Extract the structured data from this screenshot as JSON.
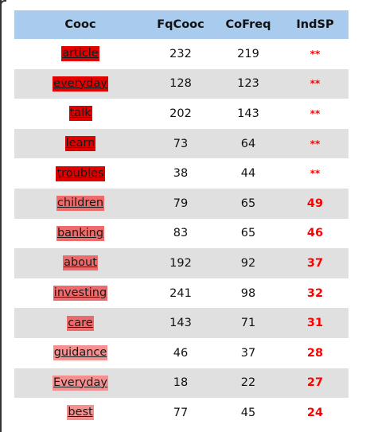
{
  "table": {
    "headers": [
      "Cooc",
      "FqCooc",
      "CoFreq",
      "IndSP"
    ],
    "rows": [
      {
        "word": "article",
        "fq": "232",
        "co": "219",
        "ind": "**",
        "level": "strong"
      },
      {
        "word": "everyday",
        "fq": "128",
        "co": "123",
        "ind": "**",
        "level": "strong"
      },
      {
        "word": "talk",
        "fq": "202",
        "co": "143",
        "ind": "**",
        "level": "strong"
      },
      {
        "word": "learn",
        "fq": "73",
        "co": "64",
        "ind": "**",
        "level": "strong"
      },
      {
        "word": "troubles",
        "fq": "38",
        "co": "44",
        "ind": "**",
        "level": "strong"
      },
      {
        "word": "children",
        "fq": "79",
        "co": "65",
        "ind": "49",
        "level": "medium"
      },
      {
        "word": "banking",
        "fq": "83",
        "co": "65",
        "ind": "46",
        "level": "medium"
      },
      {
        "word": "about",
        "fq": "192",
        "co": "92",
        "ind": "37",
        "level": "medium"
      },
      {
        "word": "investing",
        "fq": "241",
        "co": "98",
        "ind": "32",
        "level": "medium"
      },
      {
        "word": "care",
        "fq": "143",
        "co": "71",
        "ind": "31",
        "level": "medium"
      },
      {
        "word": "guidance",
        "fq": "46",
        "co": "37",
        "ind": "28",
        "level": "light"
      },
      {
        "word": "Everyday",
        "fq": "18",
        "co": "22",
        "ind": "27",
        "level": "light"
      },
      {
        "word": "best",
        "fq": "77",
        "co": "45",
        "ind": "24",
        "level": "light"
      }
    ]
  },
  "colors": {
    "header_bg": "#a9cbee",
    "stripe_bg": "#e0e0e0",
    "strong_highlight": "#e00000",
    "medium_highlight": "#ef6b6b",
    "light_highlight": "#f49090",
    "indsp_text": "#ff0000"
  }
}
